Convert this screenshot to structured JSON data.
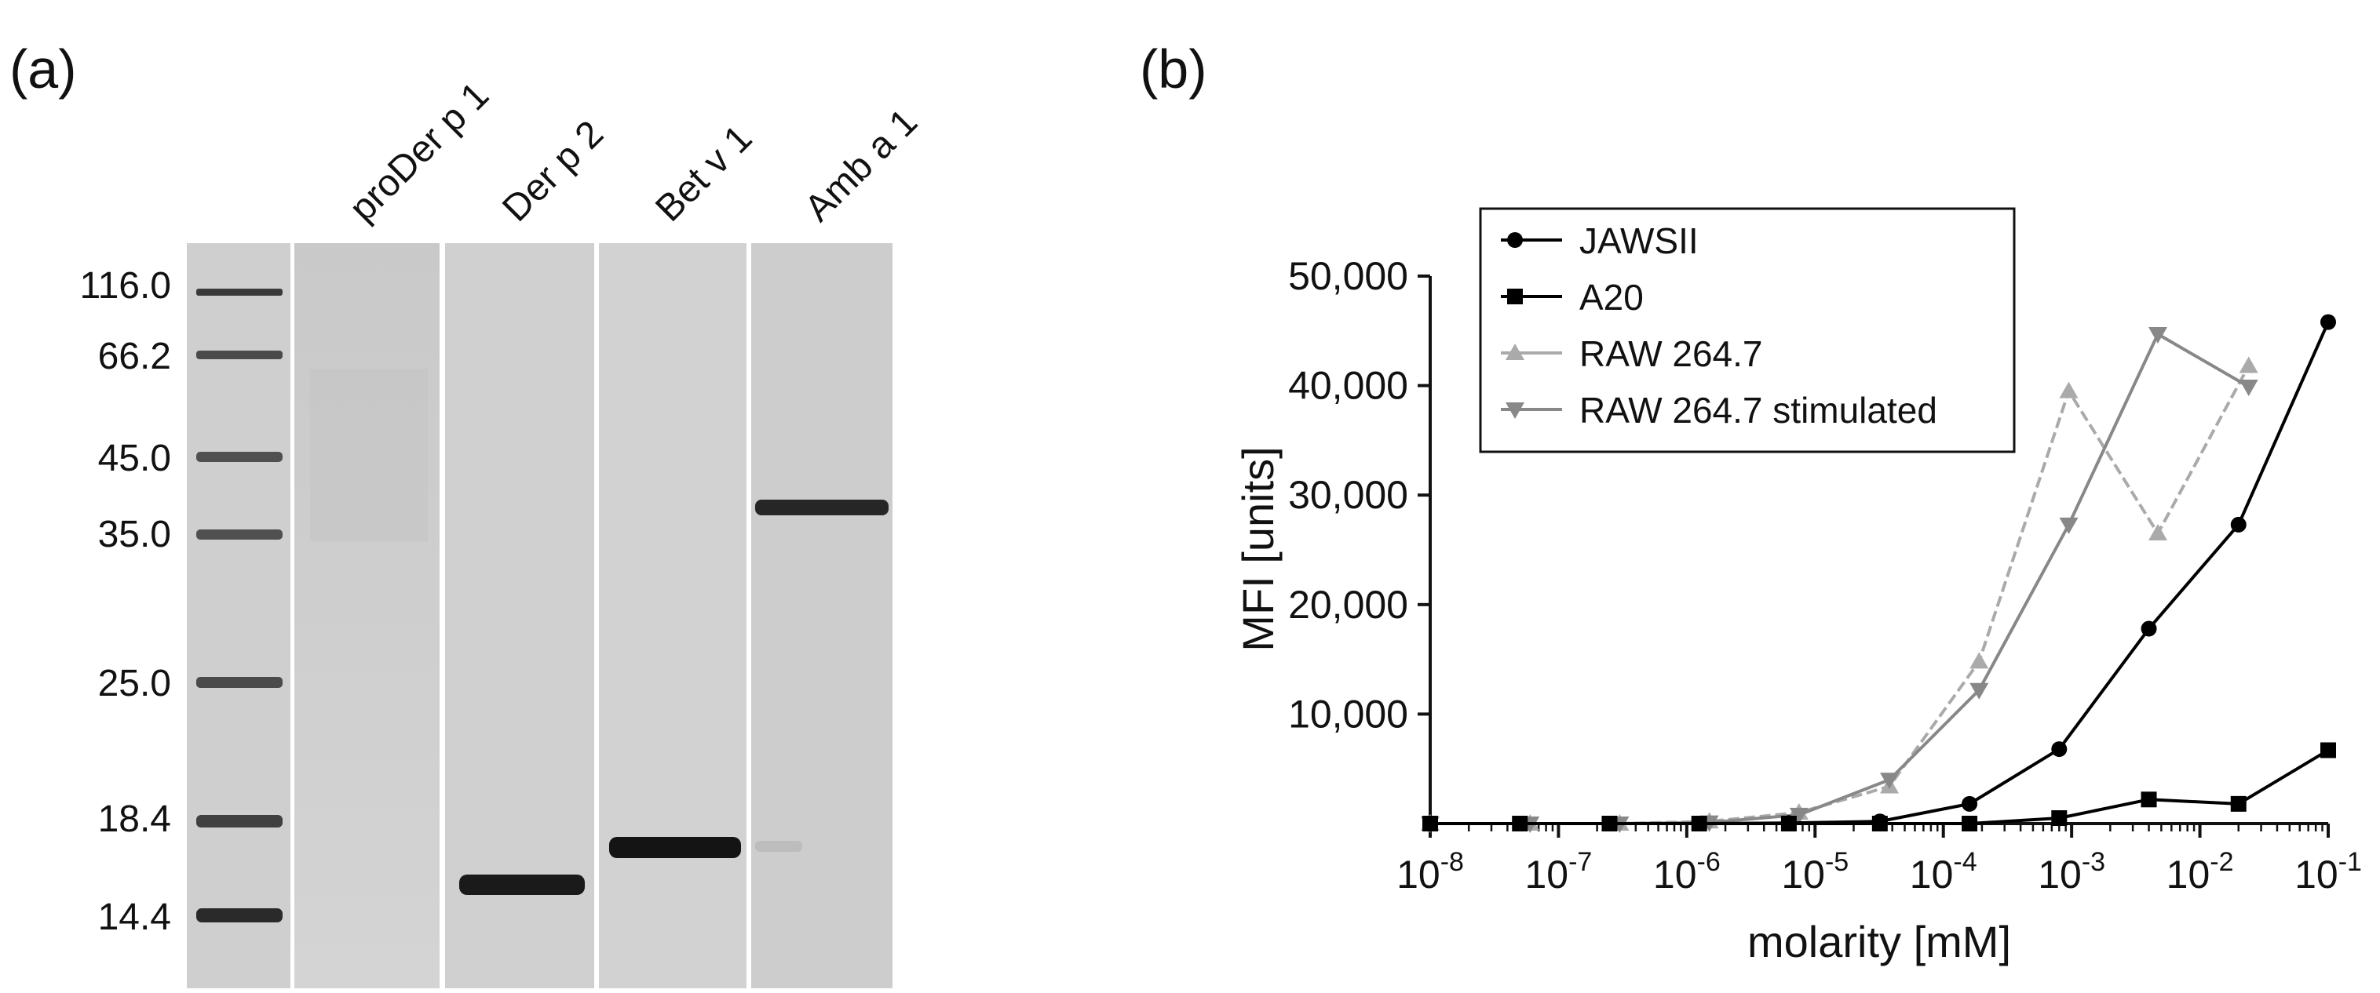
{
  "panel_a": {
    "label": "(a)",
    "markers": [
      "116.0",
      "66.2",
      "45.0",
      "35.0",
      "25.0",
      "18.4",
      "14.4"
    ],
    "lanes": [
      "proDer p 1",
      "Der p 2",
      "Bet v 1",
      "Amb a 1"
    ]
  },
  "panel_b": {
    "label": "(b)"
  },
  "chart_data": {
    "type": "line",
    "xlabel": "molarity [mM]",
    "ylabel": "MFI [units]",
    "x_scale": "log",
    "xlim": [
      1e-08,
      0.1
    ],
    "ylim": [
      0,
      50000
    ],
    "x_ticks": [
      1e-08,
      1e-07,
      1e-06,
      1e-05,
      0.0001,
      0.001,
      0.01,
      0.1
    ],
    "x_tick_base": [
      "10",
      "10",
      "10",
      "10",
      "10",
      "10",
      "10",
      "10"
    ],
    "x_tick_exp": [
      "-8",
      "-7",
      "-6",
      "-5",
      "-4",
      "-3",
      "-2",
      "-1"
    ],
    "y_ticks": [
      10000,
      20000,
      30000,
      40000,
      50000
    ],
    "y_tick_labels": [
      "10,000",
      "20,000",
      "30,000",
      "40,000",
      "50,000"
    ],
    "grid": false,
    "legend_position": "top-left",
    "series": [
      {
        "name": "JAWSII",
        "marker": "circle",
        "color": "#000000",
        "x": [
          1e-08,
          5e-08,
          2.5e-07,
          1.25e-06,
          6.25e-06,
          3.2e-05,
          0.00016,
          0.0008,
          0.004,
          0.02,
          0.1
        ],
        "y": [
          0,
          0,
          0,
          0,
          50,
          200,
          1800,
          6800,
          17800,
          27300,
          45800
        ]
      },
      {
        "name": "A20",
        "marker": "square",
        "color": "#000000",
        "x": [
          1e-08,
          5e-08,
          2.5e-07,
          1.25e-06,
          6.25e-06,
          3.2e-05,
          0.00016,
          0.0008,
          0.004,
          0.02,
          0.1
        ],
        "y": [
          0,
          0,
          0,
          0,
          0,
          0,
          0,
          500,
          2200,
          1800,
          6700
        ]
      },
      {
        "name": "RAW 264.7",
        "marker": "triangle-up",
        "color": "#aaaaaa",
        "x": [
          1e-08,
          6e-08,
          3e-07,
          1.5e-06,
          7.5e-06,
          3.8e-05,
          0.00019,
          0.00095,
          0.0047,
          0.024
        ],
        "y": [
          0,
          0,
          0,
          200,
          1000,
          3400,
          14800,
          39500,
          26500,
          41800
        ]
      },
      {
        "name": "RAW 264.7 stimulated",
        "marker": "triangle-down",
        "color": "#888888",
        "x": [
          1e-08,
          6e-08,
          3e-07,
          1.5e-06,
          7.5e-06,
          3.8e-05,
          0.00019,
          0.00095,
          0.0047,
          0.024
        ],
        "y": [
          0,
          0,
          0,
          100,
          800,
          4000,
          12200,
          27300,
          44700,
          39900
        ]
      }
    ]
  }
}
